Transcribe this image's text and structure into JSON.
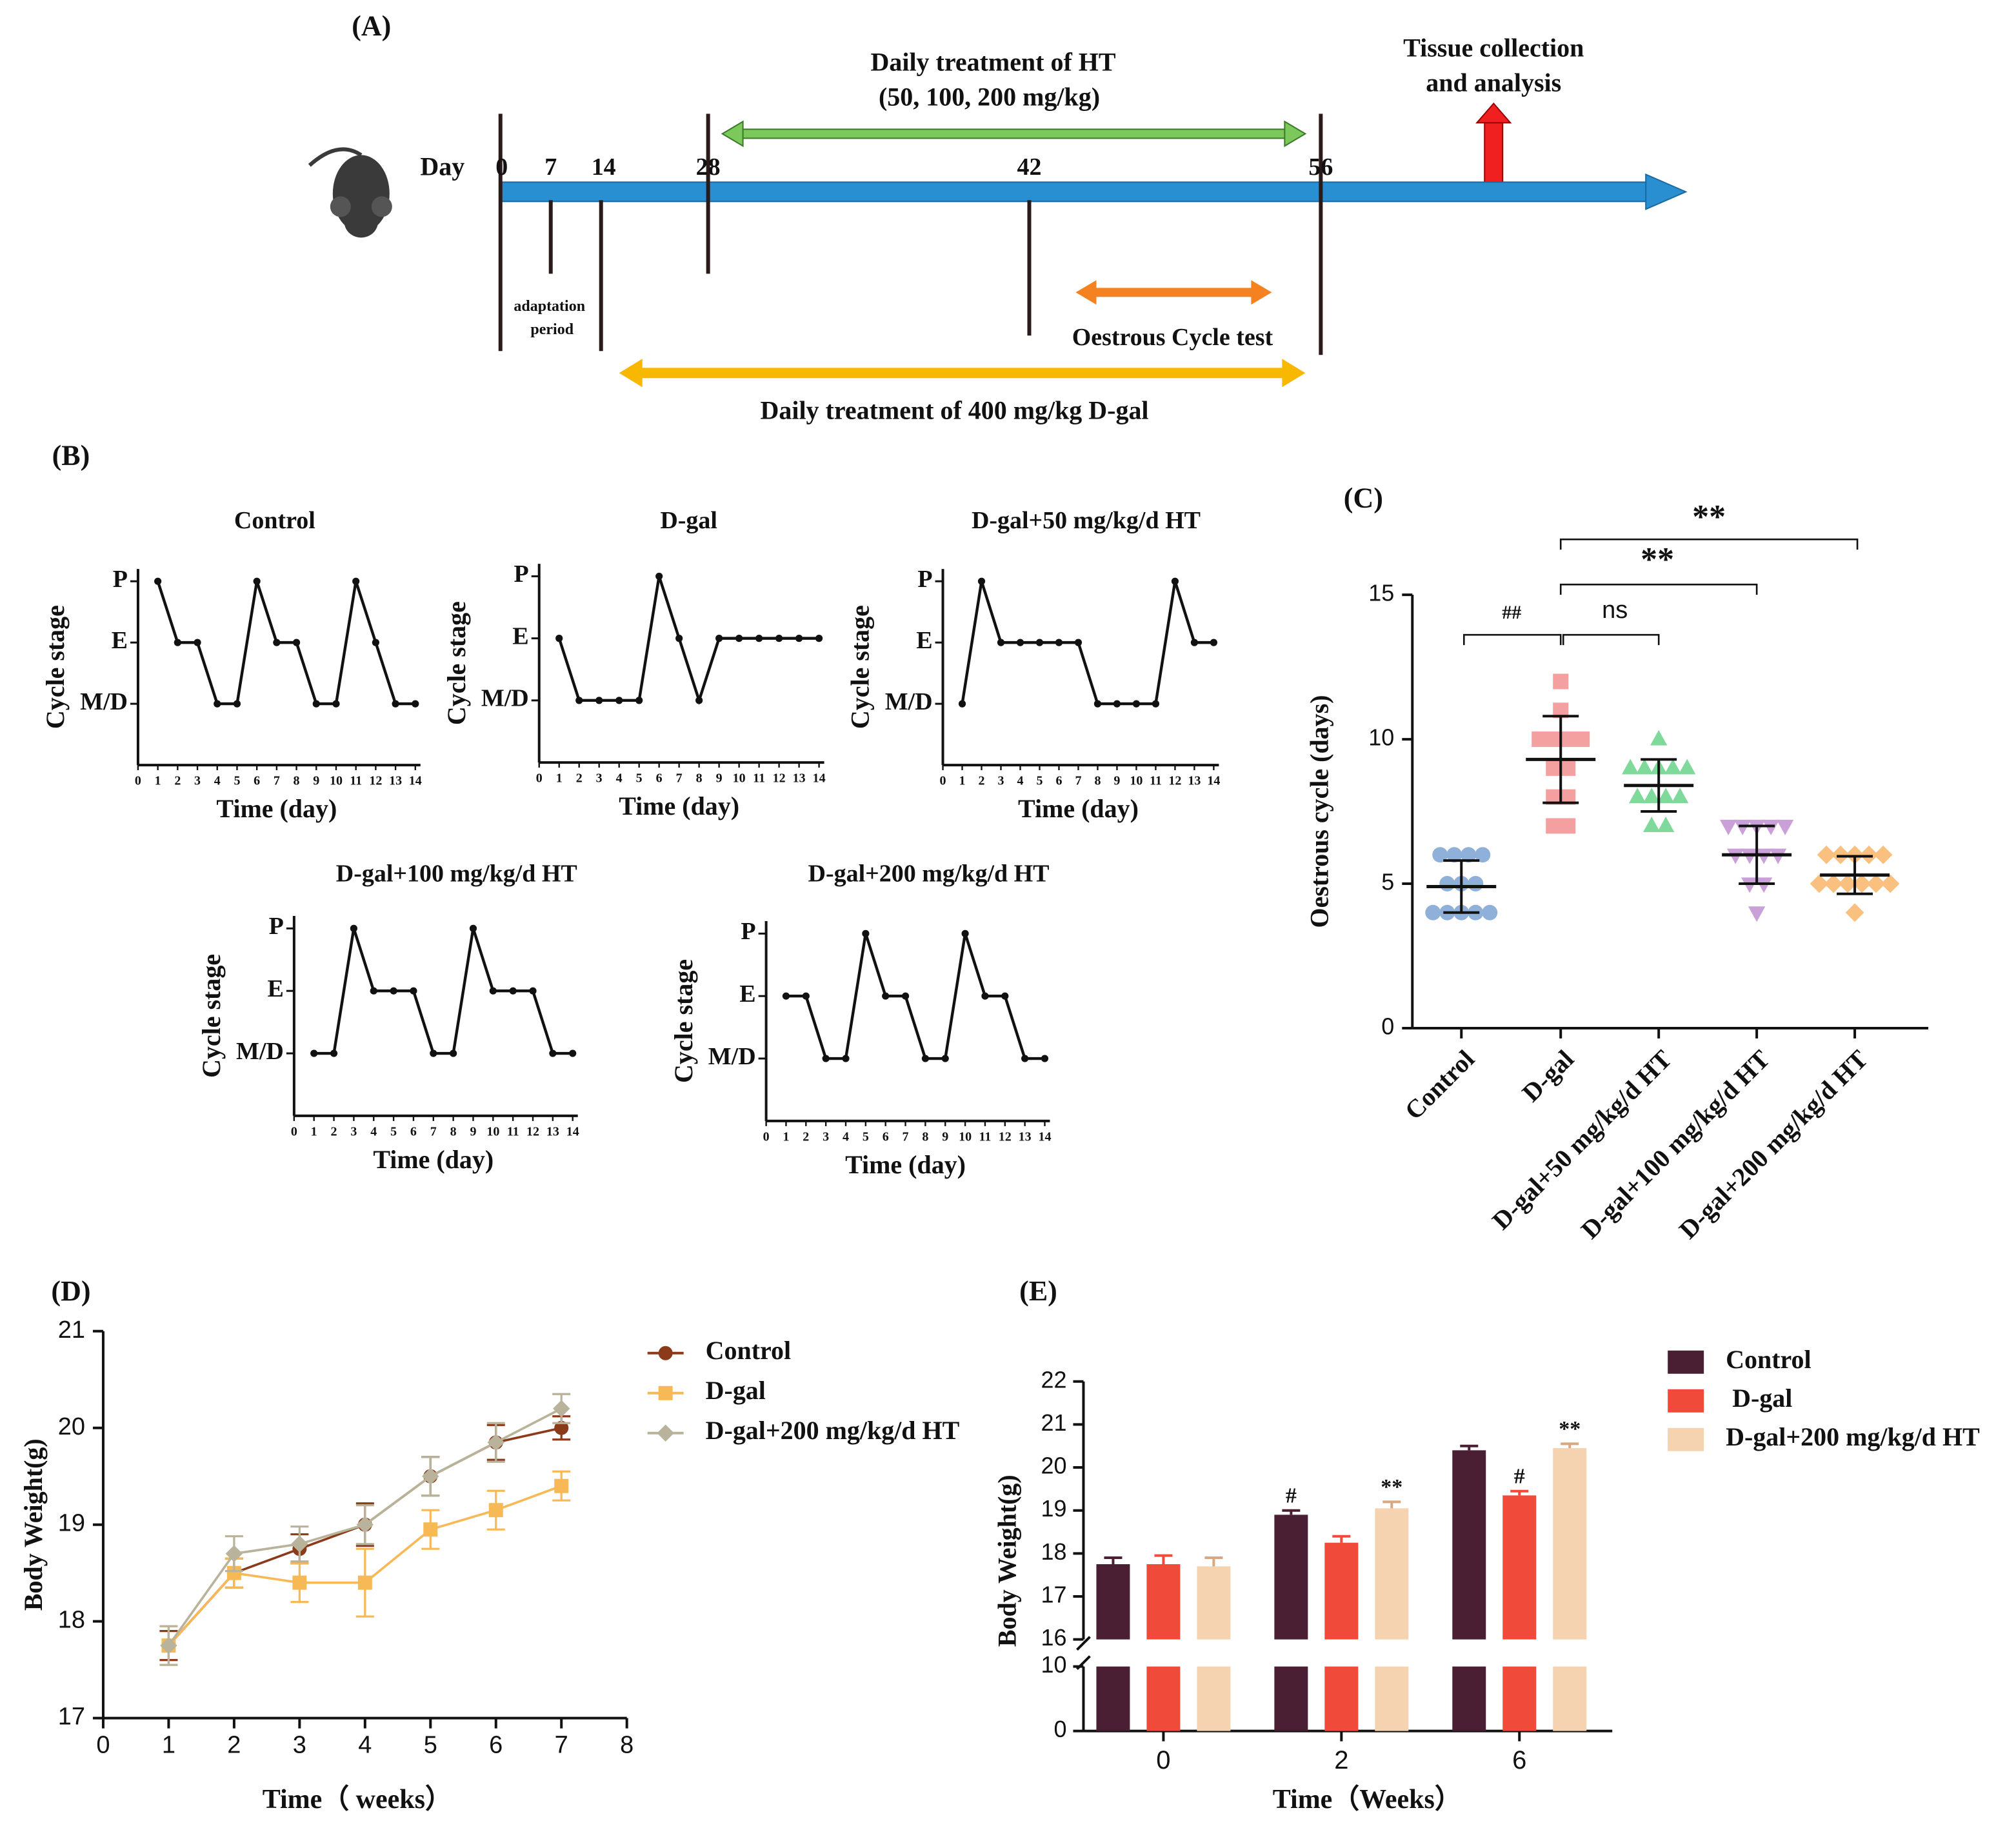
{
  "timeline": {
    "panel": "(A)",
    "day_label": "Day",
    "days": [
      "0",
      "7",
      "14",
      "28",
      "42",
      "56"
    ],
    "ht_title": "Daily treatment of  HT",
    "ht_doses": "(50, 100, 200 mg/kg)",
    "tissue_1": "Tissue collection",
    "tissue_2": "and analysis",
    "adaptation_1": "adaptation",
    "adaptation_2": "period",
    "oestrous": "Oestrous Cycle test",
    "dgal": "Daily treatment of 400 mg/kg D-gal"
  },
  "chart_data": [
    {
      "type": "stage",
      "panel": "(B)",
      "title": "Control",
      "xlabel": "Time (day)",
      "ylabel": "Cycle stage",
      "x": [
        1,
        2,
        3,
        4,
        5,
        6,
        7,
        8,
        9,
        10,
        11,
        12,
        13,
        14
      ],
      "values": [
        2,
        1,
        1,
        0,
        0,
        2,
        1,
        1,
        0,
        0,
        2,
        1,
        0,
        0
      ],
      "xlim": [
        0,
        14
      ],
      "xticks": [
        0,
        1,
        2,
        3,
        4,
        5,
        6,
        7,
        8,
        9,
        10,
        11,
        12,
        13,
        14
      ],
      "ylim": [
        -1,
        2.2
      ],
      "yticks": [
        {
          "value": 0,
          "label": "M/D"
        },
        {
          "value": 1,
          "label": "E"
        },
        {
          "value": 2,
          "label": "P"
        }
      ],
      "color": "#111111"
    },
    {
      "type": "stage",
      "title": "D-gal",
      "xlabel": "Time (day)",
      "ylabel": "Cycle stage",
      "x": [
        1,
        2,
        3,
        4,
        5,
        6,
        7,
        8,
        9,
        10,
        11,
        12,
        13,
        14
      ],
      "values": [
        1,
        0,
        0,
        0,
        0,
        2,
        1,
        0,
        1,
        1,
        1,
        1,
        1,
        1
      ],
      "xlim": [
        0,
        14
      ],
      "xticks": [
        0,
        1,
        2,
        3,
        4,
        5,
        6,
        7,
        8,
        9,
        10,
        11,
        12,
        13,
        14
      ],
      "ylim": [
        -1,
        2.2
      ],
      "yticks": [
        {
          "value": 0,
          "label": "M/D"
        },
        {
          "value": 1,
          "label": "E"
        },
        {
          "value": 2,
          "label": "P"
        }
      ],
      "color": "#111111"
    },
    {
      "type": "stage",
      "title": "D-gal+50 mg/kg/d HT",
      "xlabel": "Time (day)",
      "ylabel": "Cycle stage",
      "x": [
        1,
        2,
        3,
        4,
        5,
        6,
        7,
        8,
        9,
        10,
        11,
        12,
        13,
        14
      ],
      "values": [
        0,
        2,
        1,
        1,
        1,
        1,
        1,
        0,
        0,
        0,
        0,
        2,
        1,
        1
      ],
      "xlim": [
        0,
        14
      ],
      "xticks": [
        0,
        1,
        2,
        3,
        4,
        5,
        6,
        7,
        8,
        9,
        10,
        11,
        12,
        13,
        14
      ],
      "ylim": [
        -1,
        2.2
      ],
      "yticks": [
        {
          "value": 0,
          "label": "M/D"
        },
        {
          "value": 1,
          "label": "E"
        },
        {
          "value": 2,
          "label": "P"
        }
      ],
      "color": "#111111"
    },
    {
      "type": "stage",
      "title": "D-gal+100 mg/kg/d HT",
      "xlabel": "Time (day)",
      "ylabel": "Cycle stage",
      "x": [
        1,
        2,
        3,
        4,
        5,
        6,
        7,
        8,
        9,
        10,
        11,
        12,
        13,
        14
      ],
      "values": [
        0,
        0,
        2,
        1,
        1,
        1,
        0,
        0,
        2,
        1,
        1,
        1,
        0,
        0
      ],
      "xlim": [
        0,
        14
      ],
      "xticks": [
        0,
        1,
        2,
        3,
        4,
        5,
        6,
        7,
        8,
        9,
        10,
        11,
        12,
        13,
        14
      ],
      "ylim": [
        -1,
        2.2
      ],
      "yticks": [
        {
          "value": 0,
          "label": "M/D"
        },
        {
          "value": 1,
          "label": "E"
        },
        {
          "value": 2,
          "label": "P"
        }
      ],
      "color": "#111111"
    },
    {
      "type": "stage",
      "title": "D-gal+200 mg/kg/d HT",
      "xlabel": "Time (day)",
      "ylabel": "Cycle stage",
      "x": [
        1,
        2,
        3,
        4,
        5,
        6,
        7,
        8,
        9,
        10,
        11,
        12,
        13,
        14
      ],
      "values": [
        1,
        1,
        0,
        0,
        2,
        1,
        1,
        0,
        0,
        2,
        1,
        1,
        0,
        0
      ],
      "xlim": [
        0,
        14
      ],
      "xticks": [
        0,
        1,
        2,
        3,
        4,
        5,
        6,
        7,
        8,
        9,
        10,
        11,
        12,
        13,
        14
      ],
      "ylim": [
        -1,
        2.2
      ],
      "yticks": [
        {
          "value": 0,
          "label": "M/D"
        },
        {
          "value": 1,
          "label": "E"
        },
        {
          "value": 2,
          "label": "P"
        }
      ],
      "color": "#111111"
    },
    {
      "type": "strip",
      "panel": "(C)",
      "ylabel": "Oestrous cycle (days)",
      "ylim": [
        0,
        15
      ],
      "yticks": [
        0,
        5,
        10,
        15
      ],
      "groups": [
        {
          "name": "Control",
          "color": "#8fb0d8",
          "marker": "circle",
          "values": [
            6,
            6,
            6,
            6,
            5,
            5,
            5,
            4,
            4,
            4,
            4,
            4
          ],
          "mean": 4.9,
          "sd": 0.9
        },
        {
          "name": "D-gal",
          "color": "#f4a0a0",
          "marker": "square",
          "values": [
            12,
            11,
            10,
            10,
            10,
            10,
            9,
            9,
            8,
            8,
            7,
            7
          ],
          "mean": 9.3,
          "sd": 1.5
        },
        {
          "name": "D-gal+50 mg/kg/d HT",
          "color": "#7fd99a",
          "marker": "triangle-up",
          "values": [
            10,
            9,
            9,
            9,
            9,
            9,
            8,
            8,
            8,
            8,
            7,
            7
          ],
          "mean": 8.4,
          "sd": 0.9
        },
        {
          "name": "D-gal+100 mg/kg/d HT",
          "color": "#c9a0d8",
          "marker": "triangle-down",
          "values": [
            7,
            7,
            7,
            7,
            7,
            6,
            6,
            6,
            6,
            5,
            5,
            4
          ],
          "mean": 6.0,
          "sd": 1.0
        },
        {
          "name": "D-gal+200 mg/kg/d HT",
          "color": "#f9c080",
          "marker": "diamond",
          "values": [
            6,
            6,
            6,
            6,
            6,
            5,
            5,
            5,
            5,
            5,
            5,
            4
          ],
          "mean": 5.3,
          "sd": 0.65
        }
      ],
      "comparisons": [
        "##",
        "ns",
        "**",
        "**"
      ]
    },
    {
      "type": "line",
      "panel": "(D)",
      "xlabel": "Time（ weeks）",
      "ylabel": "Body Weight(g)",
      "x": [
        1,
        2,
        3,
        4,
        5,
        6,
        7
      ],
      "xlim": [
        0,
        8
      ],
      "xticks": [
        0,
        1,
        2,
        3,
        4,
        5,
        6,
        7,
        8
      ],
      "ylim": [
        17,
        21
      ],
      "yticks": [
        17,
        18,
        19,
        20,
        21
      ],
      "series": [
        {
          "name": "Control",
          "color": "#8b3a1a",
          "marker": "circle",
          "values": [
            17.75,
            18.5,
            18.75,
            19.0,
            19.5,
            19.85,
            20.0
          ],
          "errors": [
            0.15,
            0.15,
            0.15,
            0.22,
            0.2,
            0.18,
            0.12
          ]
        },
        {
          "name": "D-gal",
          "color": "#f7b955",
          "marker": "square",
          "values": [
            17.75,
            18.5,
            18.4,
            18.4,
            18.95,
            19.15,
            19.4
          ],
          "errors": [
            0.2,
            0.15,
            0.2,
            0.35,
            0.2,
            0.2,
            0.15
          ]
        },
        {
          "name": "D-gal+200 mg/kg/d HT",
          "color": "#b8b39a",
          "marker": "diamond",
          "values": [
            17.75,
            18.7,
            18.8,
            19.0,
            19.5,
            19.85,
            20.2
          ],
          "errors": [
            0.2,
            0.18,
            0.18,
            0.2,
            0.2,
            0.2,
            0.15
          ]
        }
      ]
    },
    {
      "type": "bar",
      "panel": "(E)",
      "xlabel": "Time（Weeks）",
      "ylabel": "Body Weight(g)",
      "categories": [
        "0",
        "2",
        "6"
      ],
      "ylim": [
        0,
        22
      ],
      "axis_break": [
        10,
        16
      ],
      "yticks": [
        0,
        10,
        16,
        17,
        18,
        19,
        20,
        21,
        22
      ],
      "series": [
        {
          "name": "Control",
          "color": "#4a1f33",
          "values": [
            17.75,
            18.9,
            20.4
          ],
          "errors": [
            0.15,
            0.1,
            0.1
          ],
          "annotations": [
            null,
            "#",
            null
          ]
        },
        {
          "name": "D-gal",
          "color": "#f04a3a",
          "values": [
            17.75,
            18.25,
            19.35
          ],
          "errors": [
            0.2,
            0.15,
            0.1
          ],
          "annotations": [
            null,
            null,
            "#"
          ]
        },
        {
          "name": "D-gal+200 mg/kg/d HT",
          "color": "#f6d3b0",
          "values": [
            17.7,
            19.05,
            20.45
          ],
          "errors": [
            0.2,
            0.15,
            0.1
          ],
          "annotations": [
            null,
            "**",
            "**"
          ]
        }
      ]
    }
  ]
}
